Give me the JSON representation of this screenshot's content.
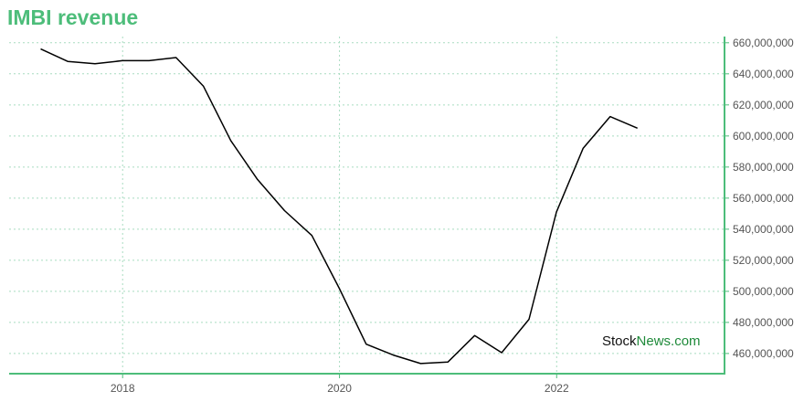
{
  "title": "IMBI revenue",
  "watermark": {
    "part1": "Stock",
    "part2": "News.com"
  },
  "colors": {
    "title": "#4dbd7a",
    "axis": "#4dbd7a",
    "grid": "#a8dcc0",
    "line": "#000000"
  },
  "chart_data": {
    "type": "line",
    "title": "IMBI revenue",
    "xlabel": "",
    "ylabel": "",
    "xlim": [
      "2016-12-15",
      "2023-07-20"
    ],
    "ylim": [
      447000000,
      664000000
    ],
    "x_ticks": [
      "2018",
      "2020",
      "2022"
    ],
    "y_ticks": [
      460000000,
      480000000,
      500000000,
      520000000,
      540000000,
      560000000,
      580000000,
      600000000,
      620000000,
      640000000,
      660000000
    ],
    "y_tick_labels": [
      "460,000,000",
      "480,000,000",
      "500,000,000",
      "520,000,000",
      "540,000,000",
      "560,000,000",
      "580,000,000",
      "600,000,000",
      "620,000,000",
      "640,000,000",
      "660,000,000"
    ],
    "grid": true,
    "series": [
      {
        "x": [
          "2017-03-31",
          "2017-06-30",
          "2017-09-30",
          "2017-12-31",
          "2018-03-31",
          "2018-06-30",
          "2018-09-30",
          "2018-12-31",
          "2019-03-31",
          "2019-06-30",
          "2019-09-30",
          "2019-12-31",
          "2020-03-31",
          "2020-06-30",
          "2020-09-30",
          "2020-12-31",
          "2021-03-31",
          "2021-06-30",
          "2021-09-30",
          "2021-12-31",
          "2022-03-31",
          "2022-06-30",
          "2022-09-30"
        ],
        "values": [
          656000000,
          648000000,
          646500000,
          648500000,
          648500000,
          650500000,
          632000000,
          597000000,
          572000000,
          552000000,
          536000000,
          502000000,
          466000000,
          459000000,
          453500000,
          454500000,
          471500000,
          460500000,
          482000000,
          551000000,
          592000000,
          612500000,
          605000000
        ]
      }
    ]
  }
}
